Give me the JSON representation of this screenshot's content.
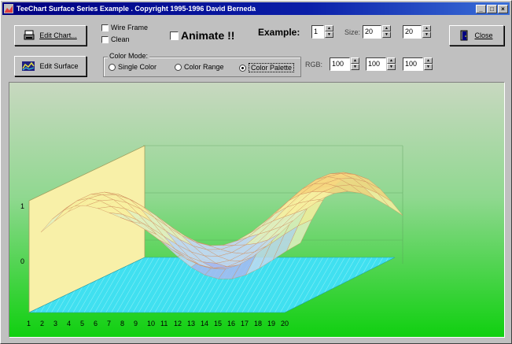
{
  "window": {
    "title": "TeeChart Surface Series Example .  Copyright 1995-1996 David Berneda",
    "controls": [
      "_",
      "□",
      "×"
    ]
  },
  "toolbar": {
    "edit_chart_label": "Edit Chart...",
    "edit_surface_label": "Edit Surface",
    "wire_frame_label": "Wire Frame",
    "clean_label": "Clean",
    "animate_label": "Animate !!",
    "example_label": "Example:",
    "example_value": "1",
    "size_label": "Size:",
    "size_x_value": "20",
    "size_z_value": "20",
    "close_label": "Close",
    "color_mode_label": "Color Mode:",
    "single_color_label": "Single Color",
    "color_range_label": "Color Range",
    "color_palette_label": "Color Palette",
    "rgb_label": "RGB:",
    "rgb_r_value": "100",
    "rgb_g_value": "100",
    "rgb_b_value": "100"
  },
  "state": {
    "wire_frame": false,
    "clean": false,
    "animate": false,
    "color_mode": "color-palette"
  },
  "chart": {
    "y_ticks": [
      "1",
      "0"
    ],
    "x_ticks": [
      "1",
      "2",
      "3",
      "4",
      "5",
      "6",
      "7",
      "8",
      "9",
      "10",
      "11",
      "12",
      "13",
      "14",
      "15",
      "16",
      "17",
      "18",
      "19",
      "20"
    ],
    "colors": {
      "bg_top": "#c8d8c0",
      "bg_bottom": "#10d010",
      "floor": "#38e0f0",
      "wall": "#f8f0a8"
    }
  }
}
